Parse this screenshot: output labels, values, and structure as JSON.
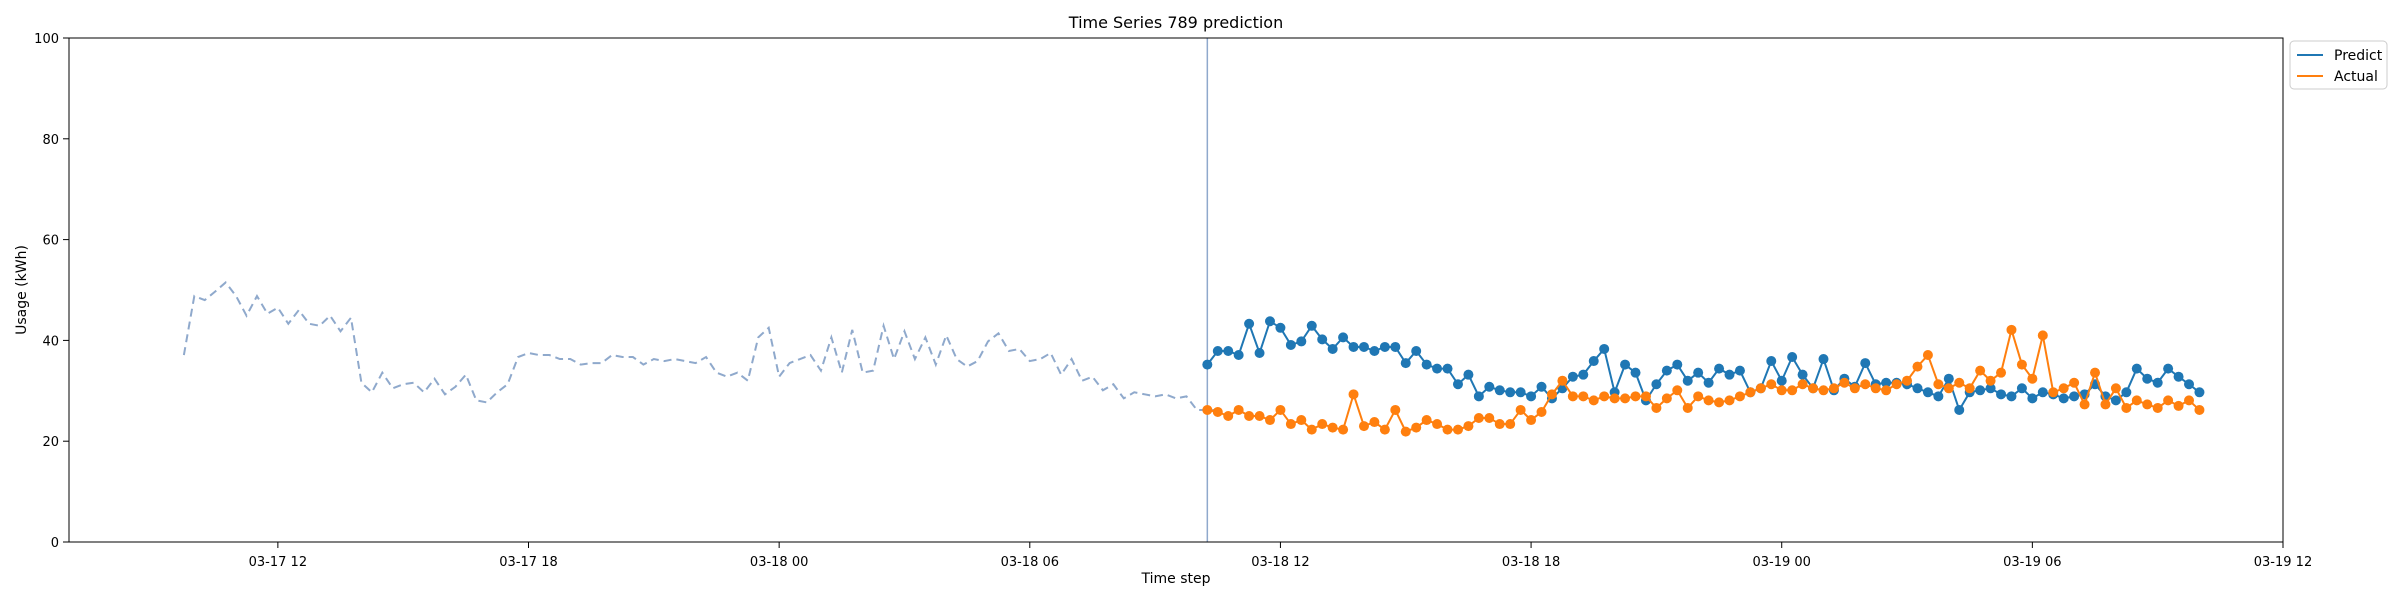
{
  "chart_data": {
    "type": "line",
    "title": "Time Series 789 prediction",
    "xlabel": "Time step",
    "ylabel": "Usage (kWh)",
    "ylim": [
      0,
      100
    ],
    "xlim": [
      "2020-03-17T07:00",
      "2020-03-19T12:00"
    ],
    "yticks": [
      0,
      20,
      40,
      60,
      80,
      100
    ],
    "xticks": [
      {
        "t": "2020-03-17T12:00",
        "label": "03-17 12"
      },
      {
        "t": "2020-03-17T18:00",
        "label": "03-17 18"
      },
      {
        "t": "2020-03-18T00:00",
        "label": "03-18 00"
      },
      {
        "t": "2020-03-18T06:00",
        "label": "03-18 06"
      },
      {
        "t": "2020-03-18T12:00",
        "label": "03-18 12"
      },
      {
        "t": "2020-03-18T18:00",
        "label": "03-18 18"
      },
      {
        "t": "2020-03-19T00:00",
        "label": "03-19 00"
      },
      {
        "t": "2020-03-19T06:00",
        "label": "03-19 06"
      },
      {
        "t": "2020-03-19T12:00",
        "label": "03-19 12"
      }
    ],
    "grid": false,
    "legend": {
      "position": "top-right"
    },
    "forecast_start": "2020-03-18T10:15",
    "interval_minutes": 15,
    "history": {
      "start": "2020-03-17T09:45",
      "color": "#8fa9cc",
      "style": "dashed",
      "values": [
        37.1,
        48.8,
        48.0,
        49.7,
        51.5,
        48.8,
        44.9,
        48.8,
        45.3,
        46.5,
        43.3,
        46.0,
        43.3,
        42.9,
        44.9,
        41.8,
        44.5,
        31.6,
        29.7,
        33.6,
        30.5,
        31.3,
        31.6,
        29.7,
        32.4,
        29.3,
        30.8,
        33.2,
        28.1,
        27.7,
        29.7,
        31.3,
        36.7,
        37.5,
        37.1,
        37.1,
        36.3,
        36.3,
        35.2,
        35.5,
        35.5,
        37.1,
        36.7,
        36.7,
        35.2,
        36.3,
        35.9,
        36.3,
        35.9,
        35.5,
        36.7,
        33.6,
        32.8,
        33.6,
        32.0,
        40.6,
        42.5,
        32.8,
        35.5,
        36.3,
        37.1,
        34.0,
        40.6,
        33.6,
        42.1,
        33.6,
        34.0,
        42.9,
        36.3,
        41.8,
        36.3,
        40.6,
        35.2,
        41.0,
        36.3,
        34.8,
        35.9,
        39.8,
        41.4,
        37.9,
        38.3,
        35.9,
        36.3,
        37.5,
        33.2,
        36.3,
        32.0,
        32.8,
        30.1,
        31.3,
        28.5,
        29.7,
        29.3,
        28.9,
        29.3,
        28.5,
        28.9,
        26.2,
        26.2,
        26.2
      ]
    },
    "series": [
      {
        "name": "Predict",
        "color": "#1f77b4",
        "values": [
          35.2,
          37.9,
          37.9,
          37.1,
          43.3,
          37.5,
          43.8,
          42.5,
          39.1,
          39.8,
          42.9,
          40.2,
          38.3,
          40.6,
          38.7,
          38.7,
          37.9,
          38.7,
          38.7,
          35.5,
          37.9,
          35.2,
          34.4,
          34.4,
          31.3,
          33.2,
          28.9,
          30.8,
          30.1,
          29.7,
          29.7,
          28.9,
          30.8,
          28.5,
          30.5,
          32.8,
          33.2,
          35.9,
          38.3,
          29.7,
          35.2,
          33.6,
          28.1,
          31.3,
          34.0,
          35.2,
          32.0,
          33.6,
          31.6,
          34.4,
          33.2,
          34.0,
          29.7,
          30.5,
          35.9,
          32.0,
          36.7,
          33.2,
          30.5,
          36.3,
          30.1,
          32.4,
          30.8,
          35.5,
          31.3,
          31.6,
          31.6,
          31.3,
          30.5,
          29.7,
          28.9,
          32.4,
          26.2,
          29.7,
          30.1,
          30.5,
          29.3,
          28.9,
          30.5,
          28.5,
          29.7,
          29.3,
          28.5,
          28.9,
          29.3,
          31.3,
          28.9,
          28.1,
          29.7,
          34.4,
          32.4,
          31.6,
          34.4,
          32.8,
          31.3,
          29.7
        ]
      },
      {
        "name": "Actual",
        "color": "#ff7f0e",
        "values": [
          26.2,
          25.8,
          25.0,
          26.2,
          25.0,
          25.0,
          24.2,
          26.2,
          23.4,
          24.2,
          22.3,
          23.4,
          22.7,
          22.3,
          29.3,
          23.0,
          23.8,
          22.3,
          26.2,
          21.9,
          22.7,
          24.2,
          23.4,
          22.3,
          22.3,
          23.0,
          24.6,
          24.6,
          23.4,
          23.4,
          26.2,
          24.2,
          25.8,
          29.3,
          32.0,
          28.9,
          28.9,
          28.1,
          28.9,
          28.5,
          28.5,
          28.9,
          28.9,
          26.6,
          28.5,
          30.1,
          26.6,
          28.9,
          28.1,
          27.7,
          28.1,
          28.9,
          29.7,
          30.5,
          31.3,
          30.1,
          30.1,
          31.3,
          30.5,
          30.1,
          30.5,
          31.6,
          30.5,
          31.3,
          30.5,
          30.1,
          31.3,
          32.0,
          34.8,
          37.1,
          31.3,
          30.5,
          31.6,
          30.5,
          34.0,
          32.0,
          33.6,
          42.1,
          35.2,
          32.4,
          41.0,
          29.7,
          30.5,
          31.6,
          27.3,
          33.6,
          27.3,
          30.5,
          26.6,
          28.1,
          27.3,
          26.6,
          28.1,
          27.0,
          28.1,
          26.2
        ]
      }
    ]
  }
}
